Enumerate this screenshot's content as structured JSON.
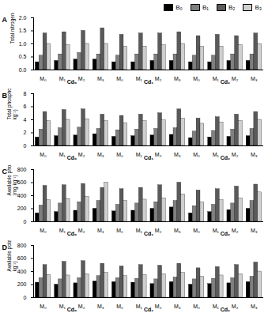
{
  "chart_data": [
    {
      "type": "bar",
      "title": "A",
      "y_label": "Total nitrogen (g kg⁻¹)",
      "legend": "top",
      "categories": [
        "M₀",
        "M₁",
        "M₂",
        "M₃",
        "M₀",
        "M₁",
        "M₂",
        "M₃",
        "M₀",
        "M₁",
        "M₂",
        "M₃"
      ],
      "category_groups": [
        "Cd₀",
        "Cd₁",
        "Cd₂"
      ],
      "ylim": [
        0,
        2
      ],
      "yticks": [
        {
          "value": 0,
          "label": "0.0"
        },
        {
          "value": 0.5,
          "label": "0.5"
        },
        {
          "value": 1,
          "label": "1.0"
        },
        {
          "value": 1.5,
          "label": "1.5"
        },
        {
          "value": 2,
          "label": "2.0"
        }
      ],
      "series": [
        {
          "name": "B₀",
          "color": "#000000",
          "values": [
            0.3,
            0.35,
            0.4,
            0.4,
            0.3,
            0.3,
            0.35,
            0.35,
            0.3,
            0.3,
            0.35,
            0.35
          ]
        },
        {
          "name": "B₁",
          "color": "#7f7f7f",
          "values": [
            0.55,
            0.6,
            0.65,
            0.6,
            0.55,
            0.6,
            0.6,
            0.6,
            0.55,
            0.55,
            0.6,
            0.6
          ]
        },
        {
          "name": "B₂",
          "color": "#5a5a5a",
          "values": [
            1.4,
            1.45,
            1.5,
            1.6,
            1.35,
            1.4,
            1.4,
            1.45,
            1.3,
            1.35,
            1.3,
            1.4
          ]
        },
        {
          "name": "B₃",
          "color": "#cfcfcf",
          "values": [
            1.0,
            0.95,
            1.0,
            1.0,
            0.9,
            0.9,
            0.95,
            1.0,
            0.9,
            0.9,
            0.95,
            1.0
          ]
        }
      ]
    },
    {
      "type": "bar",
      "title": "B",
      "y_label": "Total phosphorus (g kg⁻¹)",
      "categories": [
        "M₀",
        "M₁",
        "M₂",
        "M₃",
        "M₀",
        "M₁",
        "M₂",
        "M₃",
        "M₀",
        "M₁",
        "M₂",
        "M₃"
      ],
      "category_groups": [
        "Cd₀",
        "Cd₁",
        "Cd₂"
      ],
      "ylim": [
        0,
        8
      ],
      "yticks": [
        0,
        2,
        4,
        6,
        8
      ],
      "series": [
        {
          "name": "B₀",
          "color": "#000000",
          "values": [
            1.3,
            1.5,
            1.6,
            1.8,
            1.4,
            1.5,
            1.6,
            1.7,
            1.2,
            1.3,
            1.4,
            1.5
          ]
        },
        {
          "name": "B₁",
          "color": "#7f7f7f",
          "values": [
            2.5,
            2.7,
            2.8,
            2.6,
            2.4,
            2.5,
            2.6,
            2.7,
            2.2,
            2.3,
            2.5,
            2.6
          ]
        },
        {
          "name": "B₂",
          "color": "#5a5a5a",
          "values": [
            5.2,
            5.5,
            5.6,
            4.8,
            4.6,
            4.8,
            5.0,
            5.6,
            4.2,
            4.4,
            4.8,
            5.2
          ]
        },
        {
          "name": "B₃",
          "color": "#cfcfcf",
          "values": [
            3.8,
            4.0,
            4.1,
            3.8,
            3.5,
            3.8,
            3.9,
            4.2,
            3.4,
            3.6,
            3.8,
            4.0
          ]
        }
      ]
    },
    {
      "type": "bar",
      "title": "C",
      "y_label": "Available phosphorus (mg kg⁻¹)",
      "categories": [
        "M₀",
        "M₁",
        "M₂",
        "M₃",
        "M₀",
        "M₁",
        "M₂",
        "M₃",
        "M₀",
        "M₁",
        "M₂",
        "M₃"
      ],
      "category_groups": [
        "Cd₀",
        "Cd₁",
        "Cd₂"
      ],
      "ylim": [
        0,
        800
      ],
      "yticks": [
        0,
        200,
        400,
        600,
        800
      ],
      "series": [
        {
          "name": "B₀",
          "color": "#000000",
          "values": [
            130,
            150,
            170,
            200,
            160,
            170,
            200,
            220,
            130,
            150,
            180,
            200
          ]
        },
        {
          "name": "B₁",
          "color": "#7f7f7f",
          "values": [
            250,
            280,
            300,
            320,
            260,
            280,
            300,
            320,
            240,
            260,
            280,
            320
          ]
        },
        {
          "name": "B₂",
          "color": "#5a5a5a",
          "values": [
            550,
            560,
            580,
            520,
            500,
            520,
            560,
            600,
            480,
            500,
            540,
            570
          ]
        },
        {
          "name": "B₃",
          "color": "#cfcfcf",
          "values": [
            330,
            350,
            380,
            600,
            320,
            340,
            360,
            420,
            300,
            330,
            360,
            450
          ]
        }
      ]
    },
    {
      "type": "bar",
      "title": "D",
      "y_label": "Available potassium (mg kg⁻¹)",
      "categories": [
        "M₀",
        "M₁",
        "M₂",
        "M₃",
        "M₀",
        "M₁",
        "M₂",
        "M₃",
        "M₀",
        "M₁",
        "M₂",
        "M₃"
      ],
      "category_groups": [
        "Cd₀",
        "Cd₁",
        "Cd₂"
      ],
      "ylim": [
        0,
        800
      ],
      "yticks": [
        0,
        200,
        400,
        600,
        800
      ],
      "series": [
        {
          "name": "B₀",
          "color": "#000000",
          "values": [
            230,
            200,
            220,
            250,
            240,
            230,
            210,
            240,
            200,
            210,
            220,
            240
          ]
        },
        {
          "name": "B₁",
          "color": "#7f7f7f",
          "values": [
            300,
            280,
            300,
            330,
            300,
            290,
            280,
            310,
            280,
            290,
            300,
            320
          ]
        },
        {
          "name": "B₂",
          "color": "#5a5a5a",
          "values": [
            500,
            550,
            560,
            520,
            480,
            500,
            490,
            520,
            450,
            470,
            500,
            540
          ]
        },
        {
          "name": "B₃",
          "color": "#cfcfcf",
          "values": [
            350,
            340,
            360,
            380,
            330,
            350,
            360,
            380,
            320,
            340,
            360,
            400
          ]
        }
      ]
    }
  ]
}
